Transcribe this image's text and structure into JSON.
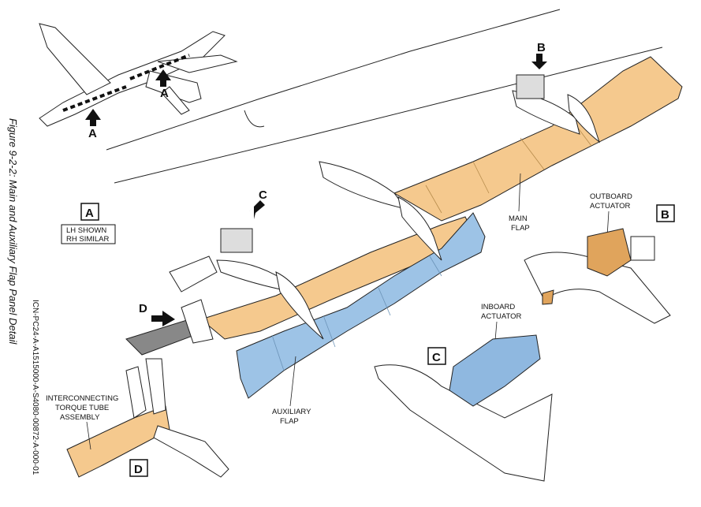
{
  "caption": "Figure 9-2-2: Main and Auxiliary Flap Panel Detail",
  "icn": "ICN-PC24-A-A1515000-A-S4080-00872-A-000-01",
  "labels": {
    "view_a_letter": "A",
    "view_a_note_1": "LH SHOWN",
    "view_a_note_2": "RH SIMILAR",
    "view_b_letter": "B",
    "view_c_letter": "C",
    "view_d_letter": "D",
    "arrow_a_upper": "A",
    "arrow_a_lower": "A",
    "arrow_b": "B",
    "arrow_c": "C",
    "arrow_d": "D",
    "outboard_1": "OUTBOARD",
    "outboard_2": "ACTUATOR",
    "inboard_1": "INBOARD",
    "inboard_2": "ACTUATOR",
    "main_flap_1": "MAIN",
    "main_flap_2": "FLAP",
    "aux_flap_1": "AUXILIARY",
    "aux_flap_2": "FLAP",
    "torque_1": "INTERCONNECTING",
    "torque_2": "TORQUE TUBE",
    "torque_3": "ASSEMBLY"
  },
  "colors": {
    "main_flap": "#f5c98e",
    "aux_flap": "#9dc3e6",
    "outboard_actuator": "#e0a45c",
    "inboard_actuator": "#8fb8e0",
    "torque_tube": "#f5c98e",
    "line": "#222222"
  }
}
